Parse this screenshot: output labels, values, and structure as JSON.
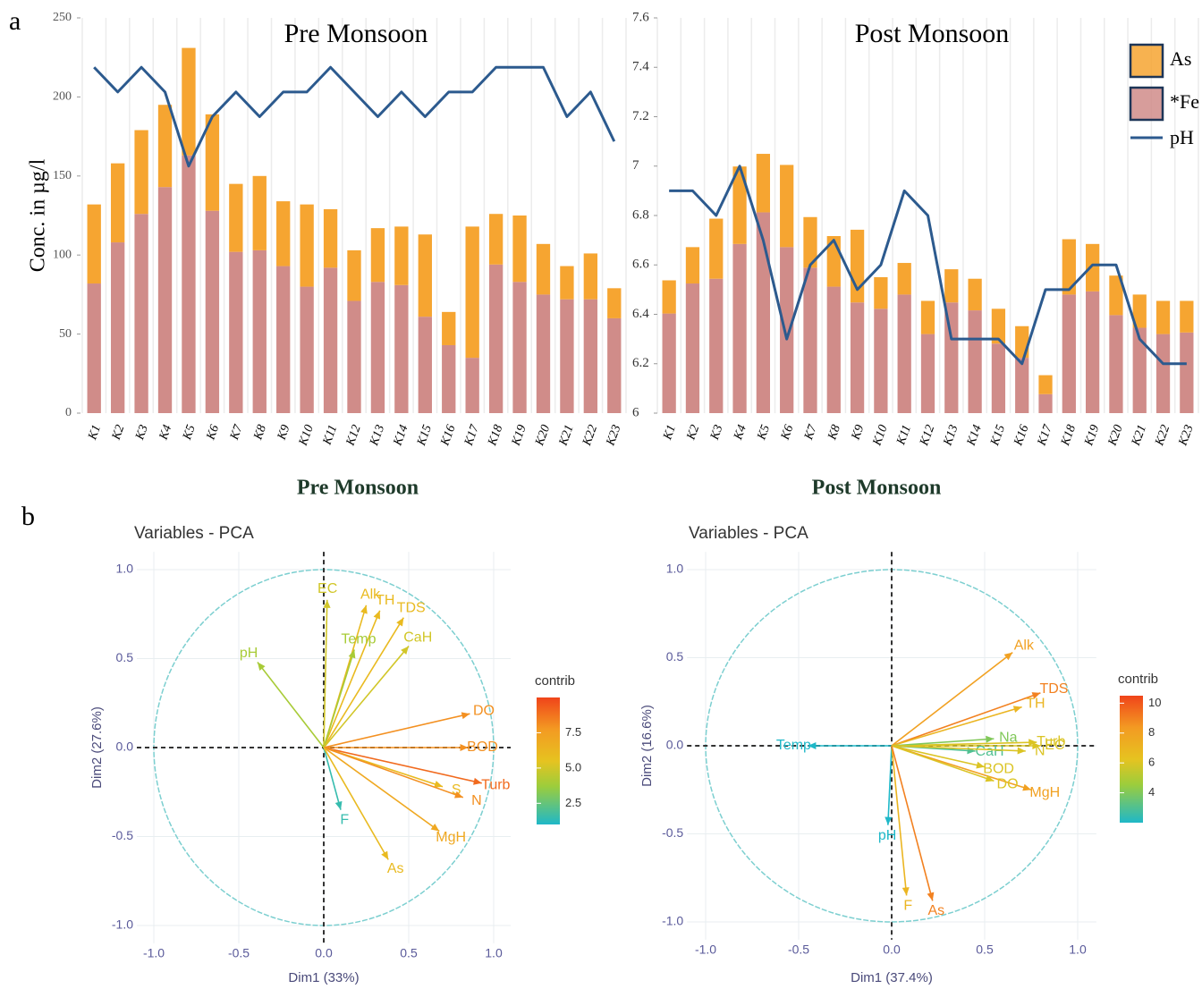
{
  "figure": {
    "panel_labels": [
      "a",
      "b"
    ]
  },
  "chart_data": [
    {
      "type": "bar",
      "title": "Pre Monsoon",
      "ylabel": "Conc. in µg/l",
      "categories": [
        "K1",
        "K2",
        "K3",
        "K4",
        "K5",
        "K6",
        "K7",
        "K8",
        "K9",
        "K10",
        "K11",
        "K12",
        "K13",
        "K14",
        "K15",
        "K16",
        "K17",
        "K18",
        "K19",
        "K20",
        "K21",
        "K22",
        "K23"
      ],
      "series": [
        {
          "name": "As",
          "color": "#f6a531",
          "values": [
            50,
            50,
            53,
            52,
            68,
            61,
            43,
            47,
            41,
            52,
            37,
            32,
            34,
            37,
            52,
            21,
            83,
            32,
            42,
            32,
            21,
            29,
            19
          ]
        },
        {
          "name": "*Fe",
          "color": "#d08c89",
          "values": [
            82,
            108,
            126,
            143,
            163,
            128,
            102,
            103,
            93,
            80,
            92,
            71,
            83,
            81,
            61,
            43,
            35,
            94,
            83,
            75,
            72,
            72,
            60
          ]
        },
        {
          "name": "pH",
          "type": "line",
          "axis": "y2",
          "color": "#2c5a8e",
          "values": [
            7.4,
            7.3,
            7.4,
            7.3,
            7.0,
            7.2,
            7.3,
            7.2,
            7.3,
            7.3,
            7.4,
            7.3,
            7.2,
            7.3,
            7.2,
            7.3,
            7.3,
            7.4,
            7.4,
            7.4,
            7.2,
            7.3,
            7.1
          ]
        }
      ],
      "ylim": [
        0,
        250
      ],
      "yticks": [
        0,
        50,
        100,
        150,
        200,
        250
      ],
      "y2lim": [
        6,
        7.6
      ],
      "legend": false
    },
    {
      "type": "bar",
      "title": "Post Monsoon",
      "categories": [
        "K1",
        "K2",
        "K3",
        "K4",
        "K5",
        "K6",
        "K7",
        "K8",
        "K9",
        "K10",
        "K11",
        "K12",
        "K13",
        "K14",
        "K15",
        "K16",
        "K17",
        "K18",
        "K19",
        "K20",
        "K21",
        "K22",
        "K23"
      ],
      "series": [
        {
          "name": "As",
          "color": "#f6a531",
          "values": [
            21,
            23,
            38,
            49,
            37,
            52,
            32,
            32,
            46,
            20,
            20,
            21,
            21,
            20,
            22,
            20,
            12,
            35,
            30,
            25,
            21,
            21,
            20
          ]
        },
        {
          "name": "*Fe",
          "color": "#d08c89",
          "values": [
            63,
            82,
            85,
            107,
            127,
            105,
            92,
            80,
            70,
            66,
            75,
            50,
            70,
            65,
            44,
            35,
            12,
            75,
            77,
            62,
            54,
            50,
            51
          ]
        },
        {
          "name": "pH",
          "type": "line",
          "axis": "y2",
          "color": "#2c5a8e",
          "values": [
            6.9,
            6.9,
            6.8,
            7.0,
            6.7,
            6.3,
            6.6,
            6.7,
            6.5,
            6.6,
            6.9,
            6.8,
            6.3,
            6.3,
            6.3,
            6.2,
            6.5,
            6.5,
            6.6,
            6.6,
            6.3,
            6.2,
            6.2
          ]
        }
      ],
      "ylim": [
        0,
        250
      ],
      "y2lim": [
        6,
        7.6
      ],
      "y2ticks": [
        6,
        6.2,
        6.4,
        6.6,
        6.8,
        7,
        7.2,
        7.4,
        7.6
      ],
      "legend": true,
      "legend_position": "top-right"
    },
    {
      "type": "pca",
      "heading": "Pre Monsoon",
      "title": "Variables - PCA",
      "xlabel": "Dim1 (33%)",
      "ylabel": "Dim2 (27.6%)",
      "variables": [
        "EC",
        "Alk",
        "TH",
        "Temp",
        "TDS",
        "CaH",
        "pH",
        "DO",
        "BOD",
        "Turb",
        "S",
        "N",
        "F",
        "MgH",
        "As"
      ],
      "x": [
        0.02,
        0.25,
        0.33,
        0.18,
        0.47,
        0.5,
        -0.39,
        0.86,
        0.85,
        0.93,
        0.7,
        0.82,
        0.1,
        0.68,
        0.38
      ],
      "y": [
        0.83,
        0.8,
        0.77,
        0.55,
        0.73,
        0.57,
        0.48,
        0.19,
        0.0,
        -0.2,
        -0.22,
        -0.28,
        -0.35,
        -0.47,
        -0.63
      ],
      "contrib": [
        5,
        6,
        6,
        4,
        6,
        5,
        4,
        8,
        8,
        9,
        6,
        8,
        1.5,
        7,
        6
      ],
      "xlim": [
        -1.1,
        1.1
      ],
      "ylim": [
        -1.1,
        1.1
      ],
      "xticks": [
        {
          "value": -1,
          "label": "-1.0"
        },
        -0.5,
        {
          "value": 0,
          "label": "0.0"
        },
        0.5,
        {
          "value": 1,
          "label": "1.0"
        }
      ],
      "yticks": [
        {
          "value": -1,
          "label": "-1.0"
        },
        -0.5,
        {
          "value": 0,
          "label": "0.0"
        },
        0.5,
        {
          "value": 1,
          "label": "1.0"
        }
      ],
      "colorbar_title": "contrib",
      "clim": [
        1,
        10
      ],
      "cticks": [
        2.5,
        {
          "value": 5,
          "label": "5.0"
        },
        7.5
      ]
    },
    {
      "type": "pca",
      "heading": "Post Monsoon",
      "title": "Variables - PCA",
      "xlabel": "Dim1 (37.4%)",
      "ylabel": "Dim2 (16.6%)",
      "variables": [
        "Temp",
        "Alk",
        "TDS",
        "TH",
        "Turb",
        "Na",
        "EC",
        "CaH",
        "N",
        "BOD",
        "MgH",
        "DO",
        "pH",
        "F",
        "As"
      ],
      "x": [
        -0.45,
        0.65,
        0.8,
        0.7,
        0.78,
        0.55,
        0.8,
        0.45,
        0.72,
        0.5,
        0.75,
        0.55,
        -0.02,
        0.08,
        0.22
      ],
      "y": [
        0.0,
        0.53,
        0.3,
        0.22,
        0.02,
        0.04,
        0.0,
        -0.03,
        -0.03,
        -0.12,
        -0.25,
        -0.2,
        -0.45,
        -0.85,
        -0.88
      ],
      "contrib": [
        2,
        8,
        9,
        7,
        6,
        4,
        6,
        3,
        6,
        6,
        8,
        6,
        2,
        7,
        9
      ],
      "xlim": [
        -1.1,
        1.1
      ],
      "ylim": [
        -1.1,
        1.1
      ],
      "xticks": [
        {
          "value": -1,
          "label": "-1.0"
        },
        -0.5,
        {
          "value": 0,
          "label": "0.0"
        },
        0.5,
        {
          "value": 1,
          "label": "1.0"
        }
      ],
      "yticks": [
        {
          "value": -1,
          "label": "-1.0"
        },
        -0.5,
        {
          "value": 0,
          "label": "0.0"
        },
        0.5,
        {
          "value": 1,
          "label": "1.0"
        }
      ],
      "colorbar_title": "contrib",
      "clim": [
        2,
        10.5
      ],
      "cticks": [
        4,
        6,
        8,
        10
      ]
    }
  ]
}
